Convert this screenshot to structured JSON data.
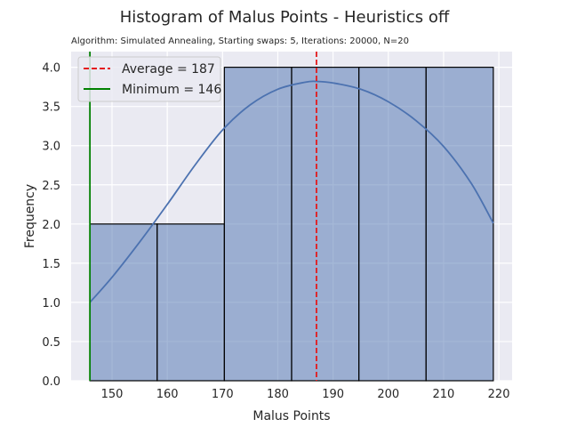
{
  "chart_data": {
    "type": "bar",
    "title": "Histogram of Malus Points - Heuristics off",
    "subtitle": "Algorithm: Simulated Annealing, Starting swaps: 5, Iterations: 20000, N=20",
    "xlabel": "Malus Points",
    "ylabel": "Frequency",
    "xlim": [
      142.6,
      222.4
    ],
    "ylim": [
      0,
      4.2
    ],
    "xticks": [
      150,
      160,
      170,
      180,
      190,
      200,
      210,
      220
    ],
    "xtick_labels": [
      "150",
      "160",
      "170",
      "180",
      "190",
      "200",
      "210",
      "220"
    ],
    "yticks": [
      0,
      0.5,
      1.0,
      1.5,
      2.0,
      2.5,
      3.0,
      3.5,
      4.0
    ],
    "ytick_labels": [
      "0.0",
      "0.5",
      "1.0",
      "1.5",
      "2.0",
      "2.5",
      "3.0",
      "3.5",
      "4.0"
    ],
    "grid": true,
    "legend_position": "top-left",
    "bins": [
      {
        "start": 146,
        "end": 158.17,
        "count": 2
      },
      {
        "start": 158.17,
        "end": 170.33,
        "count": 2
      },
      {
        "start": 170.33,
        "end": 182.5,
        "count": 4
      },
      {
        "start": 182.5,
        "end": 194.67,
        "count": 4
      },
      {
        "start": 194.67,
        "end": 206.83,
        "count": 4
      },
      {
        "start": 206.83,
        "end": 219,
        "count": 4
      }
    ],
    "kde": {
      "x": [
        146,
        150,
        155,
        160,
        165,
        170,
        175,
        180,
        185,
        187,
        190,
        195,
        200,
        205,
        210,
        215,
        219
      ],
      "y": [
        1.0,
        1.32,
        1.77,
        2.25,
        2.75,
        3.2,
        3.52,
        3.72,
        3.81,
        3.82,
        3.8,
        3.72,
        3.56,
        3.32,
        2.99,
        2.52,
        2.01
      ]
    },
    "vlines": [
      {
        "name": "Average = 187",
        "x": 187,
        "color": "#e41a1c",
        "style": "dashed"
      },
      {
        "name": "Minimum = 146",
        "x": 146,
        "color": "#008000",
        "style": "solid"
      }
    ],
    "colors": {
      "background": "#eaeaf2",
      "bar_fill": "#4c72b0",
      "bar_edge": "#000000",
      "kde_line": "#4c72b0",
      "grid": "#ffffff"
    }
  }
}
